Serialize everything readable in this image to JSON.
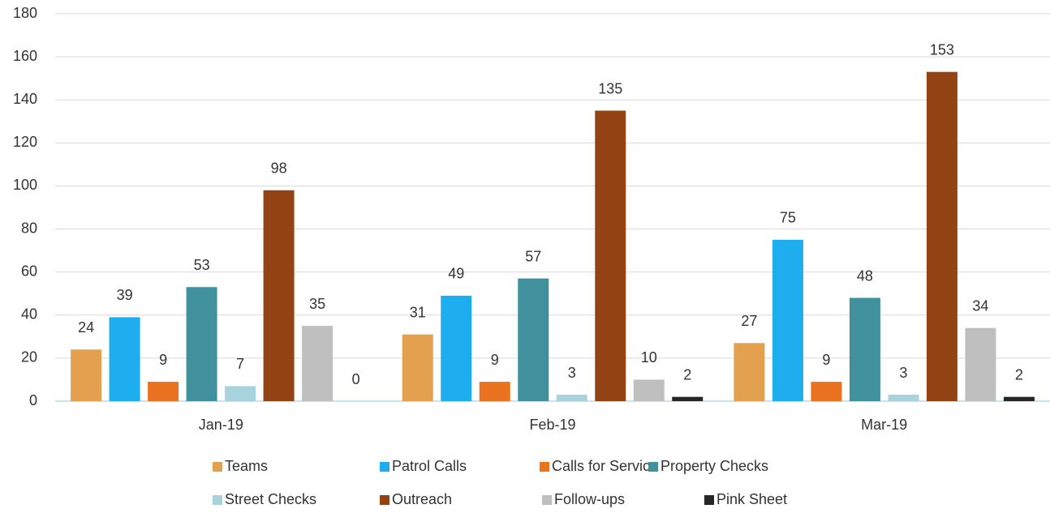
{
  "chart_data": {
    "type": "bar",
    "categories": [
      "Jan-19",
      "Feb-19",
      "Mar-19"
    ],
    "series": [
      {
        "name": "Teams",
        "color": "#e3a04e",
        "values": [
          24,
          31,
          27
        ]
      },
      {
        "name": "Patrol Calls",
        "color": "#1eaef0",
        "values": [
          39,
          49,
          75
        ]
      },
      {
        "name": "Calls for Service",
        "color": "#eb7220",
        "values": [
          9,
          9,
          9
        ]
      },
      {
        "name": "Property Checks",
        "color": "#41909e",
        "values": [
          53,
          57,
          48
        ]
      },
      {
        "name": "Street Checks",
        "color": "#a7d4dc",
        "values": [
          7,
          3,
          3
        ]
      },
      {
        "name": "Outreach",
        "color": "#944414",
        "values": [
          98,
          135,
          153
        ]
      },
      {
        "name": "Follow-ups",
        "color": "#bfbfbf",
        "values": [
          35,
          10,
          34
        ]
      },
      {
        "name": "Pink Sheet",
        "color": "#262626",
        "values": [
          0,
          2,
          2
        ]
      }
    ],
    "ylim": [
      0,
      180
    ],
    "yticks": [
      0,
      20,
      40,
      60,
      80,
      100,
      120,
      140,
      160,
      180
    ],
    "grid": true
  }
}
